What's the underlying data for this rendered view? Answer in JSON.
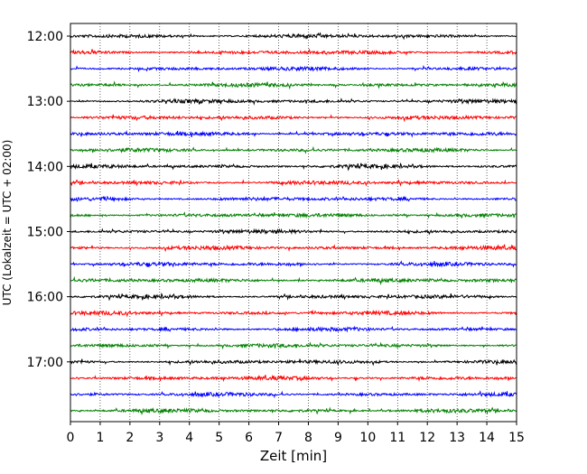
{
  "chart_data": {
    "type": "line",
    "title": "",
    "xlabel": "Zeit  [min]",
    "ylabel": "UTC (Lokalzeit = UTC + 02:00)",
    "xlim": [
      0,
      15
    ],
    "x_ticks": [
      0,
      1,
      2,
      3,
      4,
      5,
      6,
      7,
      8,
      9,
      10,
      11,
      12,
      13,
      14,
      15
    ],
    "y_ticks": [
      "12:00",
      "13:00",
      "14:00",
      "15:00",
      "16:00",
      "17:00"
    ],
    "trace_start": "12:00",
    "trace_end": "17:45",
    "trace_interval_min": 15,
    "grid": "vertical dotted at each minute",
    "series_colors": [
      "#000000",
      "#ff0000",
      "#0000ff",
      "#008000"
    ]
  }
}
